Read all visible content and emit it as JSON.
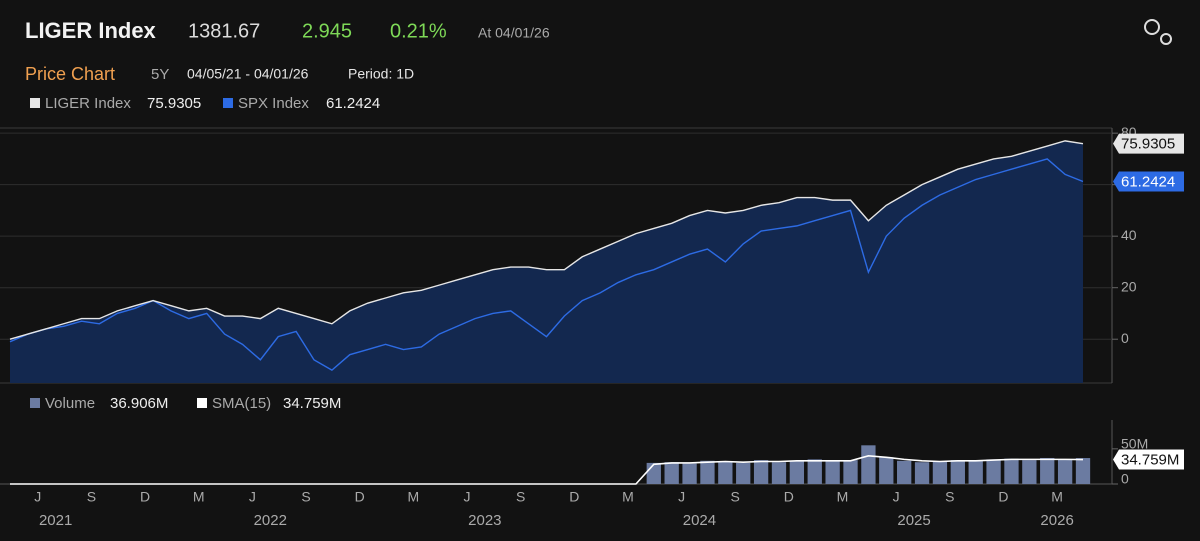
{
  "header": {
    "title": "LIGER Index",
    "price": "1381.67",
    "change": "2.945",
    "change_pct": "0.21%",
    "as_of": "At 04/01/26"
  },
  "subheader": {
    "title": "Price Chart",
    "range": "5Y",
    "dates": "04/05/21 - 04/01/26",
    "period": "Period: 1D"
  },
  "chart_data": [
    {
      "type": "line",
      "area_color": "#13284f",
      "grid": true,
      "ylim": [
        -17,
        82
      ],
      "yticks": [
        0,
        20,
        40,
        60,
        80
      ],
      "series": [
        {
          "name": "LIGER Index",
          "color": "#e6e6e6",
          "values": [
            0,
            2,
            4,
            6,
            8,
            8,
            11,
            13,
            15,
            13,
            11,
            12,
            9,
            9,
            8,
            12,
            10,
            8,
            6,
            11,
            14,
            16,
            18,
            19,
            21,
            23,
            25,
            27,
            28,
            28,
            27,
            27,
            32,
            35,
            38,
            41,
            43,
            45,
            48,
            50,
            49,
            50,
            52,
            53,
            55,
            55,
            54,
            54,
            46,
            52,
            56,
            60,
            63,
            66,
            68,
            70,
            71,
            73,
            75,
            77,
            75.9305
          ]
        },
        {
          "name": "SPX Index",
          "color": "#2d6be4",
          "values": [
            -1,
            2,
            4,
            5,
            7,
            6,
            10,
            12,
            15,
            11,
            8,
            10,
            2,
            -2,
            -8,
            1,
            3,
            -8,
            -12,
            -6,
            -4,
            -2,
            -4,
            -3,
            2,
            5,
            8,
            10,
            11,
            6,
            1,
            9,
            15,
            18,
            22,
            25,
            27,
            30,
            33,
            35,
            30,
            37,
            42,
            43,
            44,
            46,
            48,
            50,
            26,
            40,
            47,
            52,
            56,
            59,
            62,
            64,
            66,
            68,
            70,
            64,
            61.2424
          ]
        }
      ]
    },
    {
      "type": "bar",
      "categories": [
        null,
        null,
        "J",
        null,
        null,
        "S",
        null,
        null,
        "D",
        null,
        null,
        "M",
        null,
        null,
        "J",
        null,
        null,
        "S",
        null,
        null,
        "D",
        null,
        null,
        "M",
        null,
        null,
        "J",
        null,
        null,
        "S",
        null,
        null,
        "D",
        null,
        null,
        "M",
        null,
        null,
        "J",
        null,
        null,
        "S",
        null,
        null,
        "D",
        null,
        null,
        "M",
        null,
        null,
        "J",
        null,
        null,
        "S",
        null,
        null,
        "D",
        null,
        null,
        "M",
        null
      ],
      "years": [
        "2021",
        "2022",
        "2023",
        "2024",
        "2025",
        "2026"
      ],
      "ylim": [
        0,
        91000000
      ],
      "yticks": [
        0,
        {
          "value": 50000000,
          "label": "50M"
        }
      ],
      "series": [
        {
          "name": "Volume",
          "color": "#6b7ba1",
          "values": [
            0,
            0,
            0,
            0,
            0,
            0,
            0,
            0,
            0,
            0,
            0,
            0,
            0,
            0,
            0,
            0,
            0,
            0,
            0,
            0,
            0,
            0,
            0,
            0,
            0,
            0,
            0,
            0,
            0,
            0,
            0,
            0,
            0,
            0,
            0,
            0,
            30000000,
            31000000,
            29000000,
            33000000,
            32000000,
            30000000,
            34000000,
            31000000,
            33000000,
            35000000,
            32000000,
            34000000,
            55000000,
            38000000,
            33000000,
            31000000,
            32000000,
            34000000,
            33000000,
            35000000,
            36000000,
            34000000,
            37000000,
            35000000,
            36906000
          ],
          "value_labels": [
            null,
            null,
            null,
            null,
            null,
            null,
            null,
            null,
            null,
            null,
            null,
            null,
            null,
            null,
            null,
            null,
            null,
            null,
            null,
            null,
            null,
            null,
            null,
            null,
            null,
            null,
            null,
            null,
            null,
            null,
            null,
            null,
            null,
            null,
            null,
            null,
            null,
            null,
            null,
            null,
            null,
            null,
            null,
            null,
            null,
            null,
            null,
            null,
            null,
            null,
            null,
            null,
            null,
            null,
            null,
            null,
            null,
            null,
            null,
            null,
            "36.906M"
          ]
        },
        {
          "name": "SMA(15)",
          "color": "#ffffff",
          "type": "line",
          "values": [
            0,
            0,
            0,
            0,
            0,
            0,
            0,
            0,
            0,
            0,
            0,
            0,
            0,
            0,
            0,
            0,
            0,
            0,
            0,
            0,
            0,
            0,
            0,
            0,
            0,
            0,
            0,
            0,
            0,
            0,
            0,
            0,
            0,
            0,
            0,
            0,
            28000000,
            30000000,
            30000000,
            31000000,
            32000000,
            31000000,
            32000000,
            32000000,
            33000000,
            33000000,
            33000000,
            33000000,
            40000000,
            38000000,
            35000000,
            33000000,
            32000000,
            33000000,
            33000000,
            34000000,
            35000000,
            35000000,
            35000000,
            35000000,
            34759000
          ],
          "value_labels": [
            null,
            null,
            null,
            null,
            null,
            null,
            null,
            null,
            null,
            null,
            null,
            null,
            null,
            null,
            null,
            null,
            null,
            null,
            null,
            null,
            null,
            null,
            null,
            null,
            null,
            null,
            null,
            null,
            null,
            null,
            null,
            null,
            null,
            null,
            null,
            null,
            null,
            null,
            null,
            null,
            null,
            null,
            null,
            null,
            null,
            null,
            null,
            null,
            null,
            null,
            null,
            null,
            null,
            null,
            null,
            null,
            null,
            null,
            null,
            null,
            "34.759M"
          ]
        }
      ]
    }
  ]
}
